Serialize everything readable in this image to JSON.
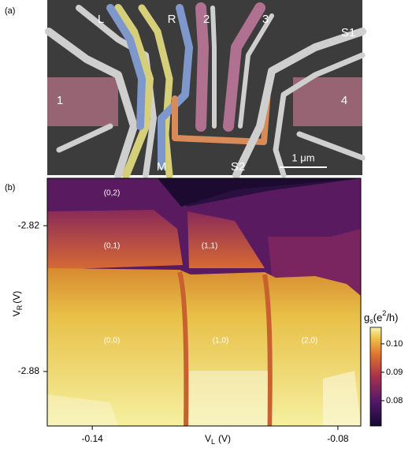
{
  "panel_a": {
    "label": "(a)",
    "gate_labels": [
      "L",
      "R",
      "2",
      "3",
      "S1",
      "1",
      "4",
      "M",
      "S2"
    ],
    "scale_bar": "1 μm"
  },
  "chart_data": {
    "type": "heatmap",
    "panel_label": "(b)",
    "xlabel": {
      "symbol": "V",
      "subscript": "L",
      "unit": "(V)"
    },
    "ylabel": {
      "symbol": "V",
      "subscript": "R",
      "unit": "(V)"
    },
    "xlim": [
      -0.151,
      -0.0744
    ],
    "xticks": [
      -0.14,
      -0.08
    ],
    "ylim": [
      -2.9024,
      -2.8005
    ],
    "yticks": [
      -2.82,
      -2.88
    ],
    "colorbar": {
      "label": {
        "symbol": "g",
        "subscript": "s",
        "unit_open": "(e",
        "superscript": "2",
        "unit_close": "/h)"
      },
      "clim": [
        0.0711,
        0.1058
      ],
      "ticks": [
        {
          "value": 0.1,
          "label": "0.10"
        },
        0.09,
        0.08
      ]
    },
    "annotations": [
      "(0,2)",
      "(0,1)",
      "(1,1)",
      "(0,0)",
      "(1,0)",
      "(2,0)"
    ]
  }
}
